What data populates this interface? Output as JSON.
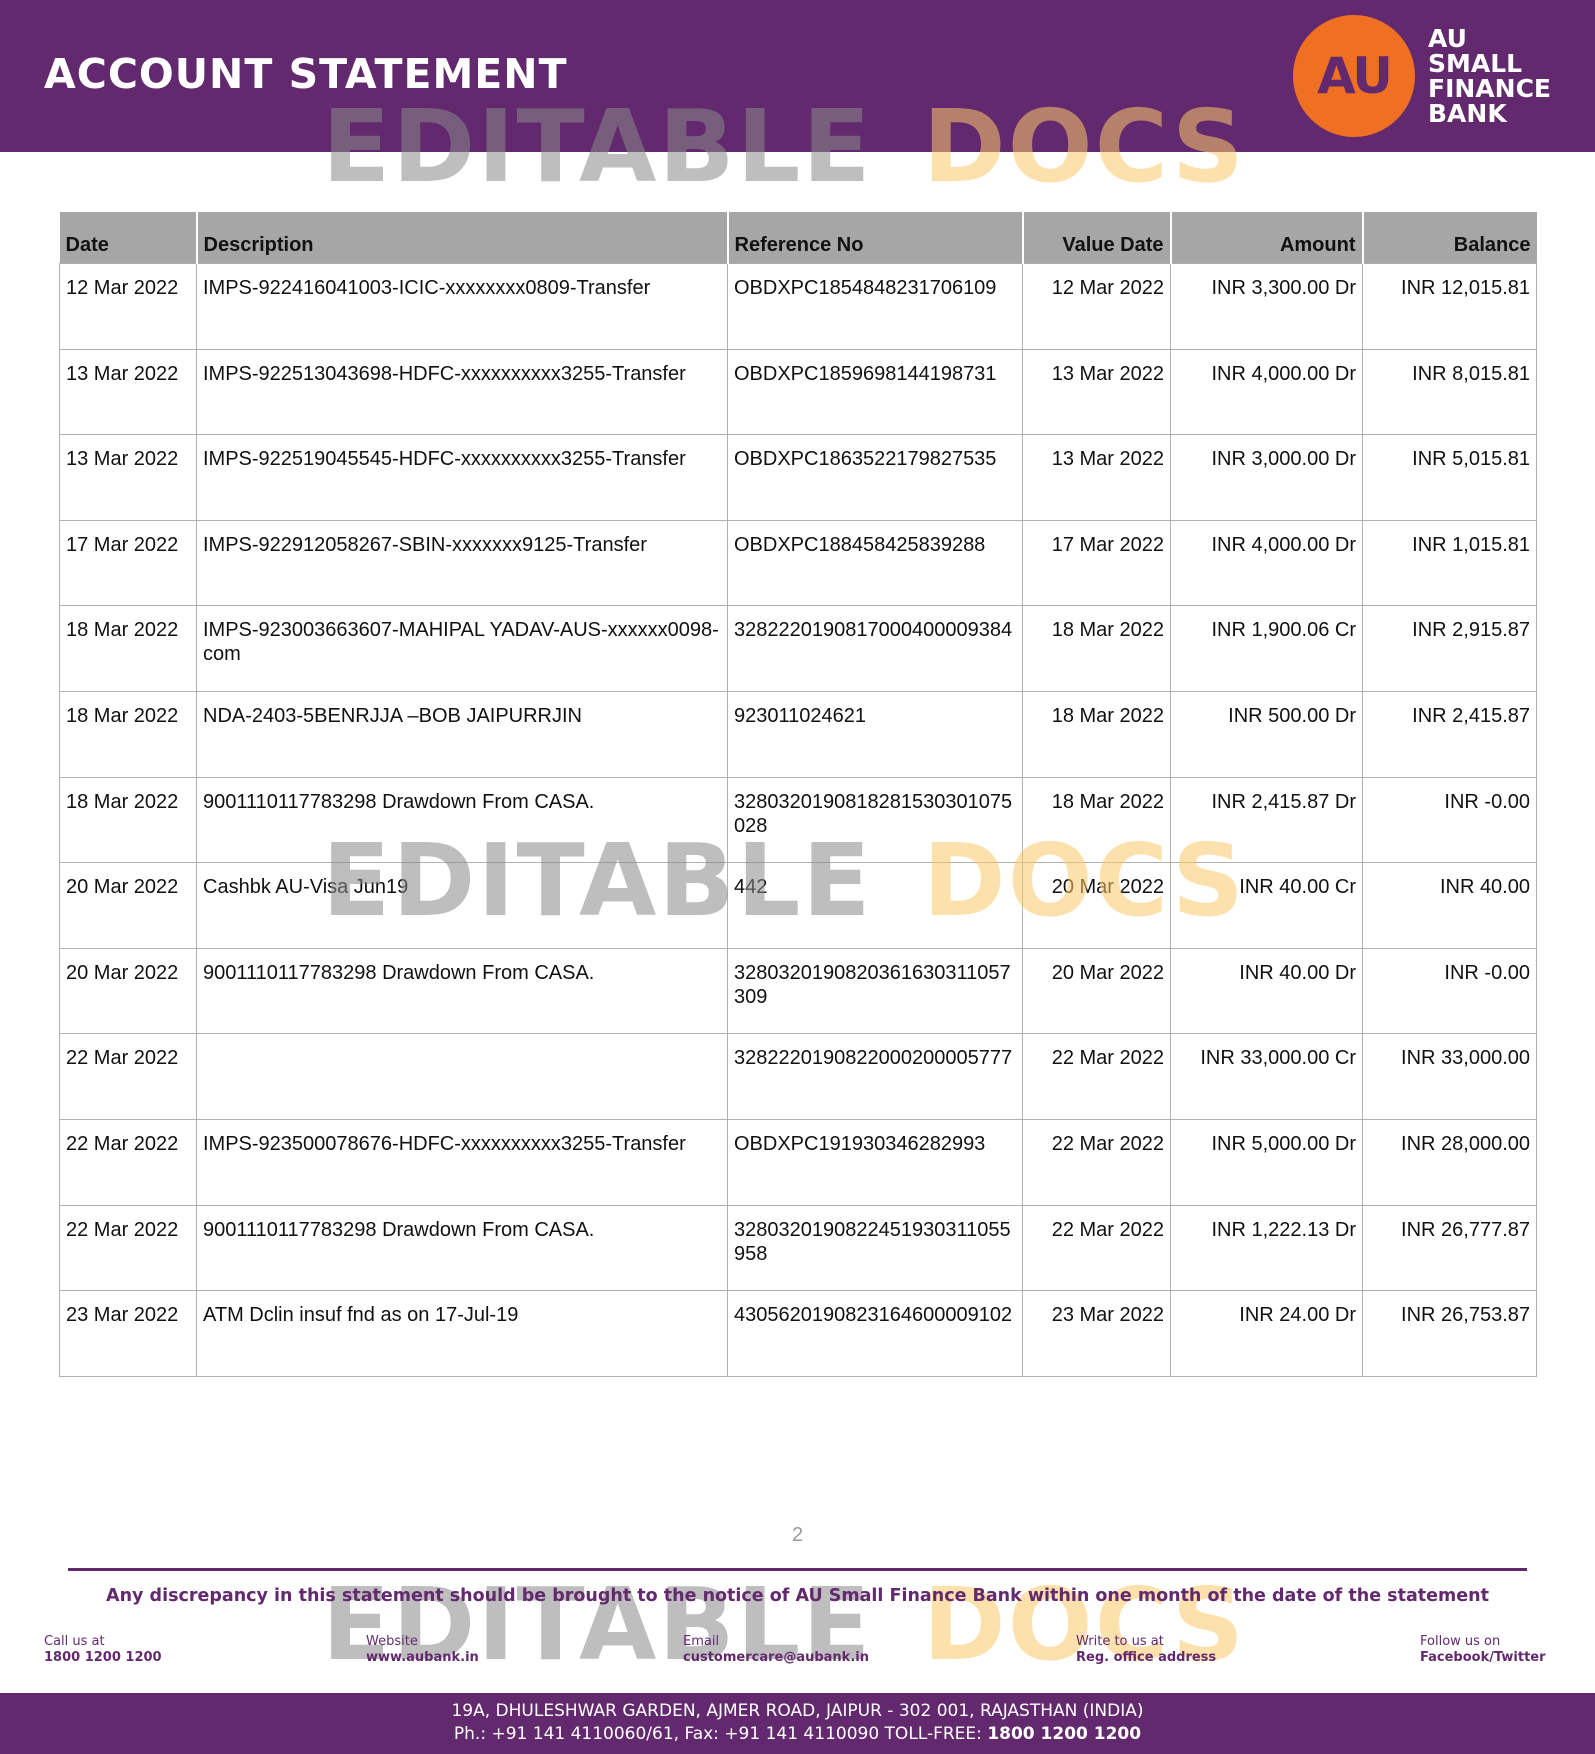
{
  "header": {
    "title": "ACCOUNT STATEMENT",
    "logo_mark": "AU",
    "logo_text": [
      "AU",
      "SMALL",
      "FINANCE",
      "BANK"
    ],
    "brand_color": "#63296e",
    "accent_color": "#ef7023"
  },
  "watermark": {
    "part1": "EDITABLE",
    "part2": "DOCS"
  },
  "table": {
    "columns": [
      "Date",
      "Description",
      "Reference No",
      "Value Date",
      "Amount",
      "Balance"
    ],
    "rows": [
      {
        "date": "12 Mar 2022",
        "description": "IMPS-922416041003-ICIC-xxxxxxxx0809-Transfer",
        "reference": "OBDXPC1854848231706109",
        "value_date": "12 Mar 2022",
        "amount": "INR 3,300.00 Dr",
        "balance": "INR 12,015.81"
      },
      {
        "date": "13 Mar 2022",
        "description": "IMPS-922513043698-HDFC-xxxxxxxxxx3255-Transfer",
        "reference": "OBDXPC1859698144198731",
        "value_date": "13 Mar 2022",
        "amount": "INR 4,000.00 Dr",
        "balance": "INR 8,015.81"
      },
      {
        "date": "13 Mar 2022",
        "description": "IMPS-922519045545-HDFC-xxxxxxxxxx3255-Transfer",
        "reference": "OBDXPC1863522179827535",
        "value_date": "13 Mar 2022",
        "amount": "INR 3,000.00 Dr",
        "balance": "INR 5,015.81"
      },
      {
        "date": "17 Mar 2022",
        "description": "IMPS-922912058267-SBIN-xxxxxxx9125-Transfer",
        "reference": "OBDXPC188458425839288",
        "value_date": "17 Mar 2022",
        "amount": "INR 4,000.00 Dr",
        "balance": "INR 1,015.81"
      },
      {
        "date": "18 Mar 2022",
        "description": "IMPS-923003663607-MAHIPAL YADAV-AUS-xxxxxx0098-com",
        "reference": "3282220190817000400009384",
        "value_date": "18 Mar 2022",
        "amount": "INR 1,900.06 Cr",
        "balance": "INR 2,915.87"
      },
      {
        "date": "18 Mar 2022",
        "description": "NDA-2403-5BENRJJA –BOB JAIPURRJIN",
        "reference": "923011024621",
        "value_date": "18 Mar 2022",
        "amount": "INR 500.00 Dr",
        "balance": "INR 2,415.87"
      },
      {
        "date": "18 Mar 2022",
        "description": "9001110117783298 Drawdown From CASA.",
        "reference": "3280320190818281530301075028",
        "value_date": "18 Mar 2022",
        "amount": "INR 2,415.87 Dr",
        "balance": "INR -0.00"
      },
      {
        "date": "20 Mar 2022",
        "description": "Cashbk AU-Visa Jun19",
        "reference": "442",
        "value_date": "20 Mar 2022",
        "amount": "INR 40.00 Cr",
        "balance": "INR 40.00"
      },
      {
        "date": "20 Mar 2022",
        "description": "9001110117783298 Drawdown From CASA.",
        "reference": "3280320190820361630311057309",
        "value_date": "20 Mar 2022",
        "amount": "INR 40.00 Dr",
        "balance": "INR -0.00"
      },
      {
        "date": "22 Mar 2022",
        "description": "",
        "reference": "3282220190822000200005777",
        "value_date": "22 Mar 2022",
        "amount": "INR 33,000.00 Cr",
        "balance": "INR 33,000.00"
      },
      {
        "date": "22 Mar 2022",
        "description": "IMPS-923500078676-HDFC-xxxxxxxxxx3255-Transfer",
        "reference": "OBDXPC191930346282993",
        "value_date": "22 Mar 2022",
        "amount": "INR 5,000.00 Dr",
        "balance": "INR 28,000.00"
      },
      {
        "date": "22 Mar 2022",
        "description": "9001110117783298 Drawdown From CASA.",
        "reference": "3280320190822451930311055958",
        "value_date": "22 Mar 2022",
        "amount": "INR 1,222.13 Dr",
        "balance": "INR 26,777.87"
      },
      {
        "date": "23 Mar 2022",
        "description": "ATM Dclin insuf fnd as on 17-Jul-19",
        "reference": "4305620190823164600009102",
        "value_date": "23 Mar 2022",
        "amount": "INR 24.00 Dr",
        "balance": "INR 26,753.87"
      }
    ]
  },
  "footer": {
    "page_number": "2",
    "notice": "Any discrepancy in this statement should be brought to the notice of AU Small Finance Bank within one month of the date of the statement",
    "contacts": [
      {
        "label": "Call us at",
        "value": "1800 1200 1200"
      },
      {
        "label": "Website",
        "value": "www.aubank.in"
      },
      {
        "label": "Email",
        "value": "customercare@aubank.in"
      },
      {
        "label": "Write to us at",
        "value": "Reg. office address"
      },
      {
        "label": "Follow us on",
        "value": "Facebook/Twitter"
      }
    ],
    "address": "19A, DHULESHWAR GARDEN, AJMER ROAD, JAIPUR - 302 001, RAJASTHAN (INDIA)",
    "phone_prefix": "Ph.: +91 141 4110060/61, Fax: +91 141 4110090 TOLL-FREE: ",
    "toll_free": "1800 1200 1200"
  }
}
